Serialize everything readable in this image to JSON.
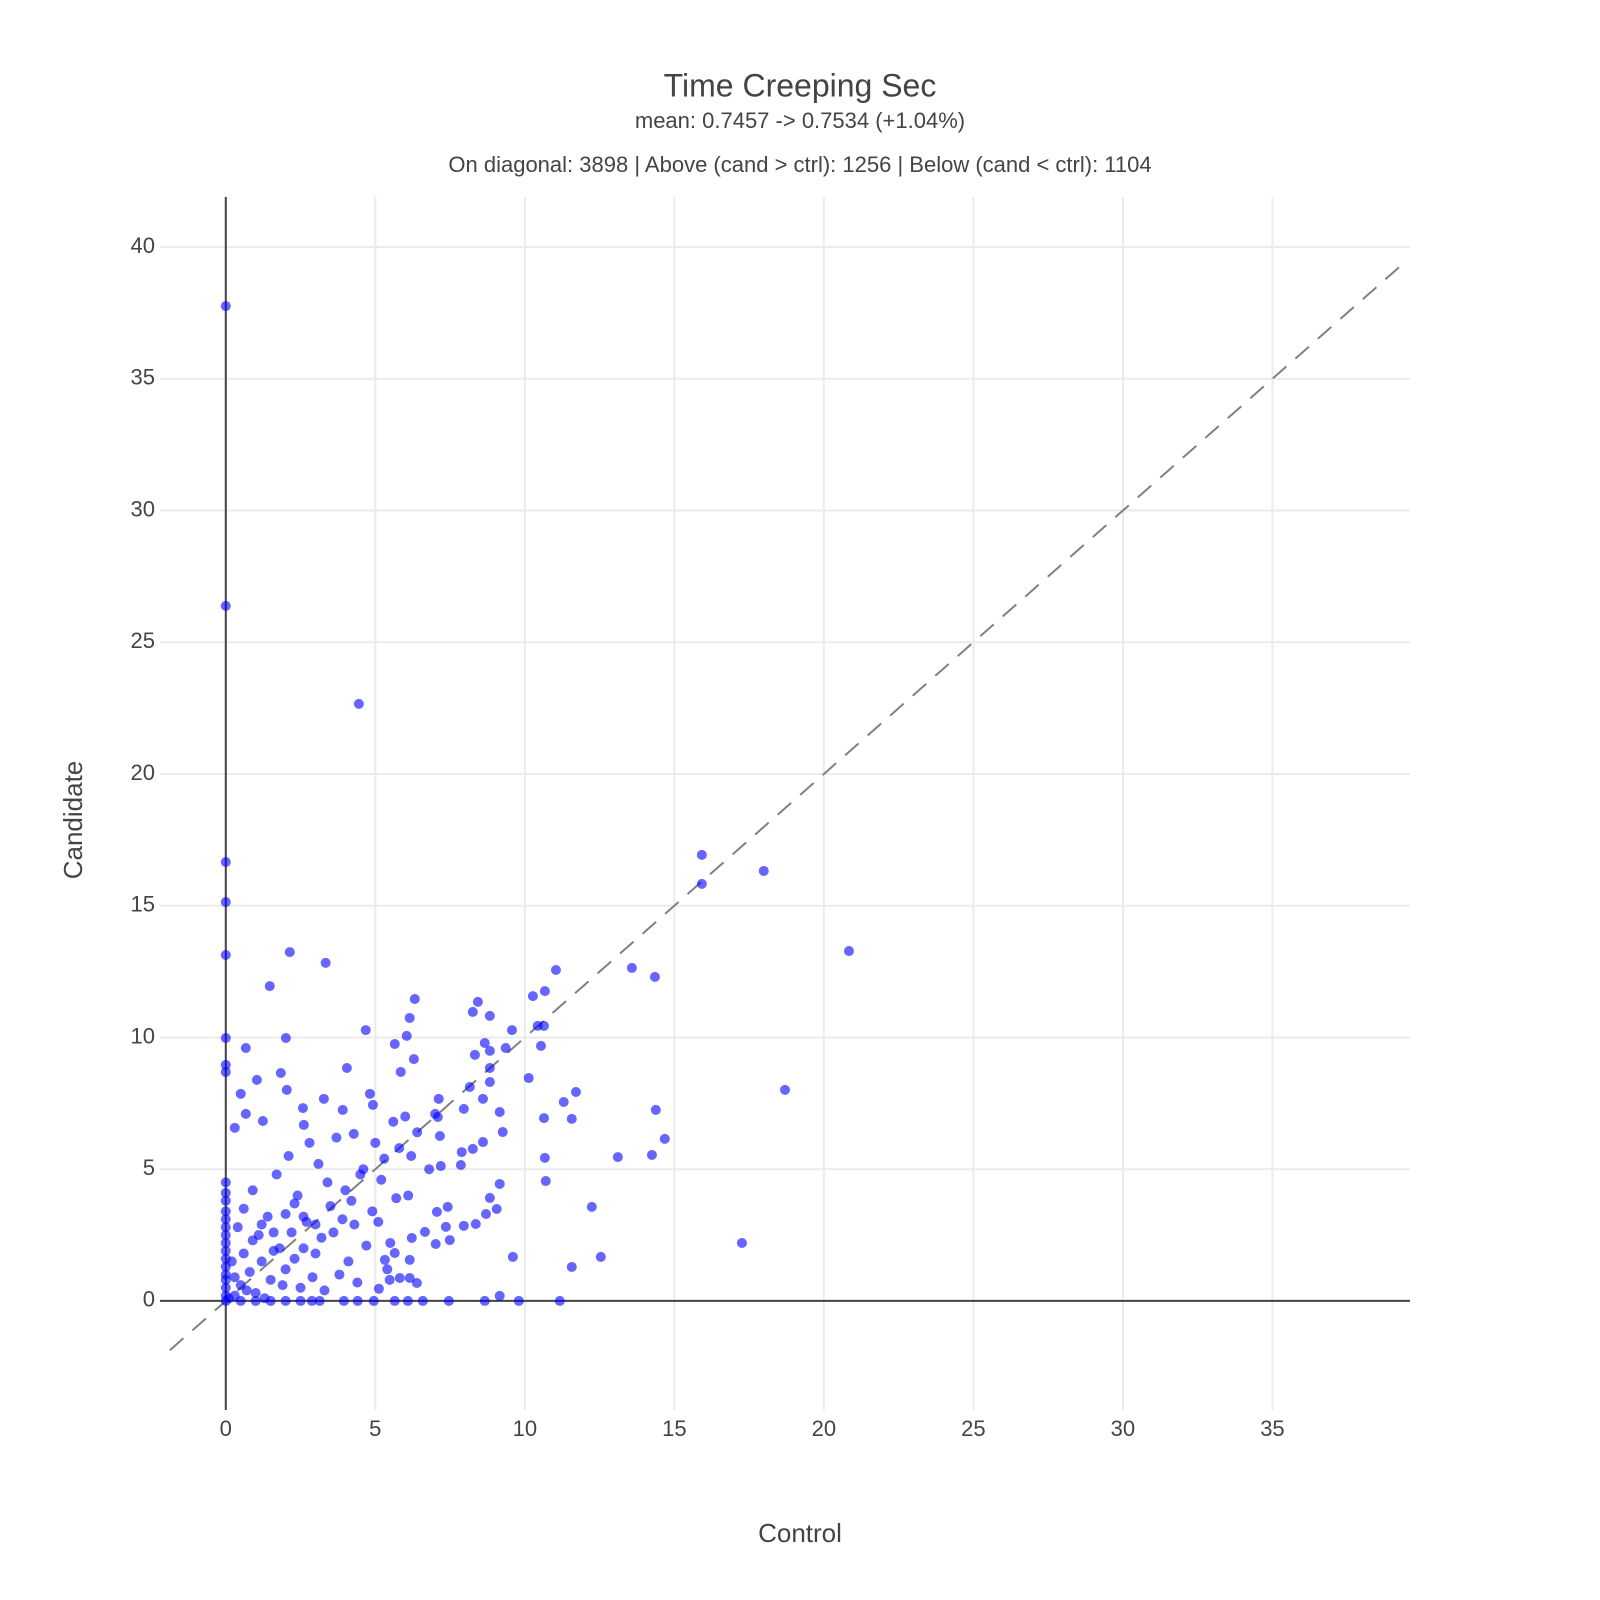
{
  "chart_data": {
    "type": "scatter",
    "title": "Time Creeping Sec",
    "subtitle": "mean: 0.7457 -> 0.7534 (+1.04%)",
    "annotation": "On diagonal: 3898 | Above (cand > ctrl): 1256 | Below (cand < ctrl): 1104",
    "x_label": "Control",
    "y_label": "Candidate",
    "xlim": [
      -2.2,
      39.6
    ],
    "ylim": [
      -4.14,
      41.9
    ],
    "xticks": [
      0,
      5,
      10,
      15,
      20,
      25,
      30,
      35
    ],
    "yticks": [
      0,
      5,
      10,
      15,
      20,
      25,
      30,
      35,
      40
    ],
    "grid": true,
    "diagonal": {
      "x": [
        -1.87,
        39.26
      ],
      "y": [
        -1.87,
        39.26
      ],
      "color": "#808080"
    },
    "series": [
      {
        "color": "#0000ff",
        "x": [
          0,
          0,
          4.45,
          0,
          0,
          0,
          15.92,
          15.92,
          17.99,
          20.84,
          18.7,
          17.26,
          13.58,
          14.35,
          11.04,
          10.67,
          10.27,
          10.43,
          10.64,
          10.54,
          9.57,
          9.36,
          10.13,
          11.71,
          11.3,
          11.57,
          10.64,
          14.38,
          14.68,
          14.25,
          13.11,
          10.67,
          10.7,
          12.24,
          12.54,
          11.57,
          9.6,
          11.17,
          9.8,
          9.16,
          8.66,
          2.14,
          3.34,
          1.47,
          2.01,
          0.67,
          0,
          0,
          0,
          1.04,
          6.32,
          6.15,
          6.05,
          5.65,
          4.68,
          4.05,
          8.43,
          8.26,
          8.83,
          8.66,
          8.83,
          8.33,
          8.83,
          8.83,
          8.16,
          8.6,
          7.96,
          9.16,
          9.26,
          8.6,
          8.26,
          7.89,
          7.86,
          7.12,
          7.09,
          7.16,
          7.19,
          6.29,
          5.85,
          0.5,
          1.84,
          2.04,
          3.28,
          2.58,
          3.91,
          4.82,
          4.92,
          0.67,
          1.24,
          0.3,
          2.61,
          4.28,
          9.16,
          8.83,
          9.06,
          8.7,
          8.36,
          7.96,
          7.42,
          7.36,
          7.49,
          7.06,
          7.02,
          6.66,
          6.22,
          6.15,
          6.15,
          6.39,
          5.82,
          5.48,
          7.46,
          6.59,
          6.09,
          5.65,
          4.95,
          4.41,
          3.95,
          3.14,
          2.88,
          5.12,
          5.32,
          5.65,
          0,
          0,
          0,
          0,
          0,
          0,
          0,
          0,
          0,
          0,
          0,
          0,
          0,
          0,
          0,
          0.3,
          0.5,
          0.8,
          1.0,
          1.2,
          1.5,
          1.8,
          2.0,
          2.2,
          2.5,
          2.7,
          3.0,
          3.2,
          3.5,
          3.8,
          4.0,
          4.3,
          4.6,
          4.9,
          5.2,
          5.5,
          5.8,
          6.1,
          6.4,
          6.8,
          7.0,
          0.4,
          0.6,
          0.9,
          1.1,
          1.4,
          1.7,
          2.1,
          2.4,
          2.8,
          3.1,
          3.4,
          3.7,
          4.2,
          4.5,
          5.0,
          5.3,
          5.6,
          6.0,
          6.2,
          0.2,
          0.7,
          1.3,
          1.6,
          1.9,
          2.3,
          2.6,
          2.9,
          3.3,
          3.6,
          3.9,
          4.1,
          4.4,
          4.7,
          5.1,
          5.4,
          5.7,
          0.1,
          0,
          0.5,
          1.0,
          1.5,
          2.0,
          2.5,
          0.3,
          0.6,
          0.9,
          1.2,
          1.6,
          2.0,
          2.3,
          2.6,
          3.0
        ],
        "y": [
          37.76,
          26.38,
          22.66,
          16.66,
          15.14,
          13.13,
          16.93,
          15.83,
          16.32,
          13.28,
          8.01,
          2.2,
          12.64,
          12.3,
          12.56,
          11.76,
          11.57,
          10.44,
          10.44,
          9.68,
          10.28,
          9.6,
          8.46,
          7.93,
          7.55,
          6.91,
          6.94,
          7.25,
          6.15,
          5.54,
          5.46,
          5.43,
          4.55,
          3.57,
          1.67,
          1.29,
          1.67,
          0,
          0,
          0.19,
          0,
          13.24,
          12.83,
          11.95,
          9.98,
          9.6,
          9.98,
          8.69,
          8.96,
          8.39,
          11.46,
          10.74,
          10.06,
          9.75,
          10.28,
          8.84,
          11.35,
          10.97,
          10.82,
          9.79,
          9.49,
          9.34,
          8.84,
          8.31,
          8.12,
          7.67,
          7.29,
          7.17,
          6.41,
          6.03,
          5.77,
          5.65,
          5.16,
          7.67,
          6.98,
          6.26,
          5.12,
          9.18,
          8.69,
          7.86,
          8.65,
          8.01,
          7.67,
          7.32,
          7.25,
          7.86,
          7.44,
          7.1,
          6.83,
          6.57,
          6.68,
          6.34,
          4.44,
          3.91,
          3.49,
          3.3,
          2.92,
          2.85,
          3.57,
          2.81,
          2.31,
          3.38,
          2.16,
          2.62,
          2.39,
          1.56,
          0.87,
          0.68,
          0.87,
          0.8,
          0,
          0,
          0,
          0,
          0,
          0,
          0,
          0,
          0,
          0.46,
          1.56,
          1.82,
          0.2,
          0.5,
          0.8,
          1.0,
          1.3,
          1.6,
          1.9,
          2.2,
          2.5,
          2.8,
          3.1,
          3.4,
          3.8,
          4.1,
          4.5,
          0.2,
          0.6,
          1.1,
          0.3,
          1.5,
          0.8,
          2.0,
          1.2,
          2.6,
          0.5,
          3.0,
          1.8,
          2.4,
          3.6,
          1.0,
          4.2,
          2.9,
          5.0,
          3.4,
          4.6,
          2.2,
          5.8,
          4.0,
          6.4,
          5.0,
          7.1,
          2.8,
          3.5,
          4.2,
          2.5,
          3.2,
          4.8,
          5.5,
          4.0,
          6.0,
          5.2,
          4.5,
          6.2,
          3.8,
          4.8,
          6.0,
          5.4,
          6.8,
          7.0,
          5.5,
          1.5,
          0.4,
          0.1,
          1.9,
          0.6,
          1.6,
          2.0,
          0.9,
          0.4,
          2.6,
          3.1,
          1.5,
          0.7,
          2.1,
          3.0,
          1.2,
          3.9,
          0.1,
          0,
          0,
          0,
          0,
          0,
          0,
          0.9,
          1.8,
          2.3,
          2.9,
          2.6,
          3.3,
          3.7,
          3.2,
          2.9
        ]
      }
    ]
  }
}
